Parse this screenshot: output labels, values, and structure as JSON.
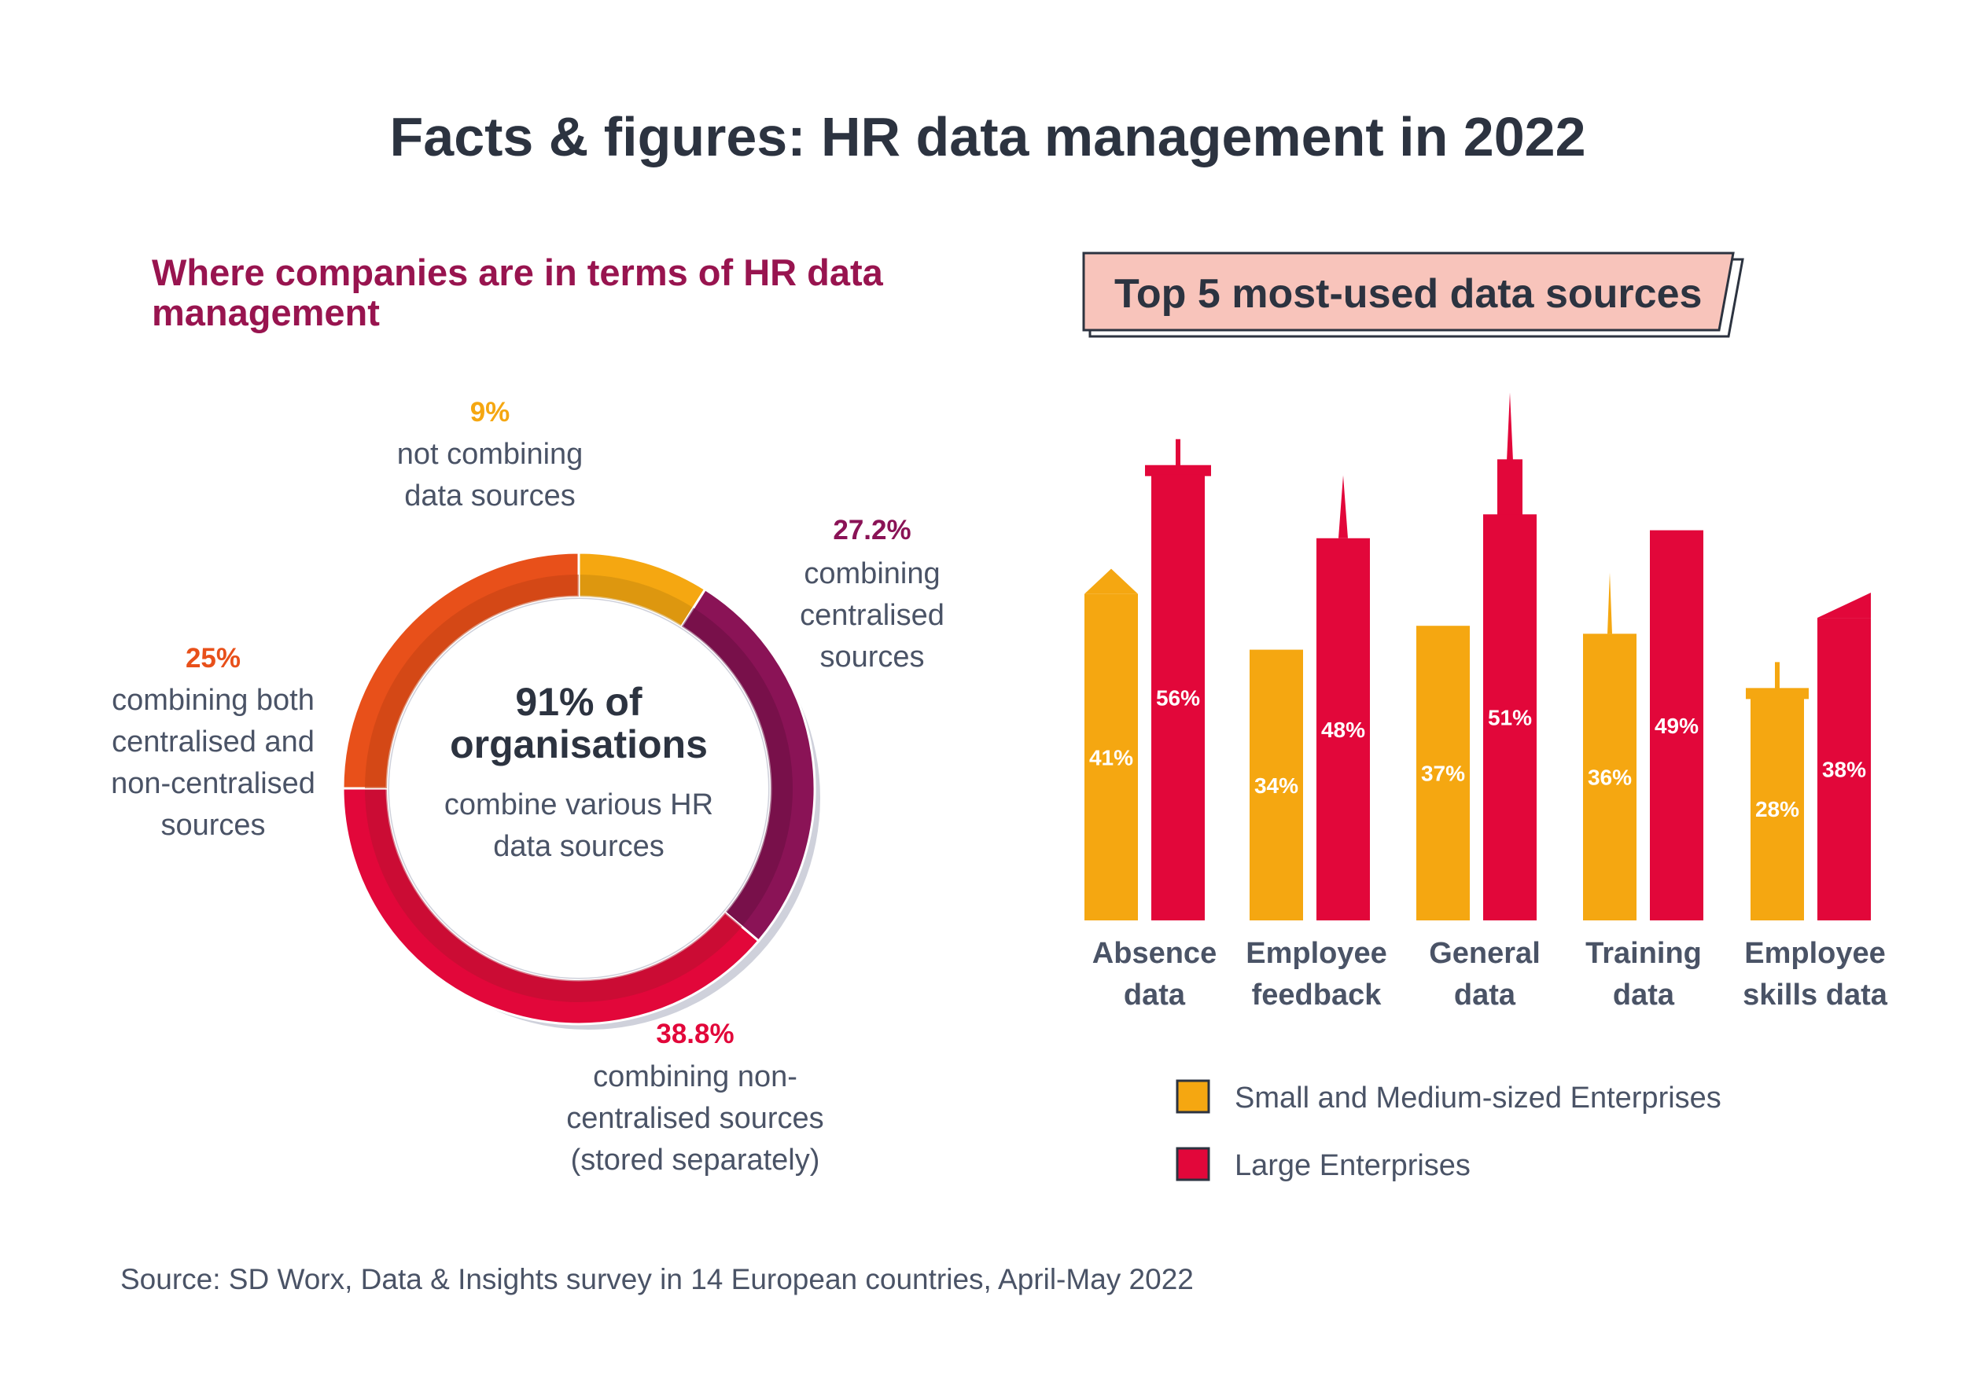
{
  "header": {
    "title": "Facts & figures: HR data management in 2022"
  },
  "left_panel": {
    "title_line1": "Where companies are in terms of HR data",
    "title_line2": "management",
    "center": {
      "line1": "91% of",
      "line2": "organisations",
      "line3": "combine various HR",
      "line4": "data sources"
    },
    "segments": [
      {
        "pct": "9%",
        "lines": [
          "not combining",
          "data sources"
        ]
      },
      {
        "pct": "27.2%",
        "lines": [
          "combining",
          "centralised",
          "sources"
        ]
      },
      {
        "pct": "38.8%",
        "lines": [
          "combining non-",
          "centralised sources",
          "(stored separately)"
        ]
      },
      {
        "pct": "25%",
        "lines": [
          "combining both",
          "centralised and",
          "non-centralised",
          "sources"
        ]
      }
    ]
  },
  "right_panel": {
    "title": "Top 5 most-used data sources",
    "categories": [
      {
        "line1": "Absence",
        "line2": "data"
      },
      {
        "line1": "Employee",
        "line2": "feedback"
      },
      {
        "line1": "General",
        "line2": "data"
      },
      {
        "line1": "Training",
        "line2": "data"
      },
      {
        "line1": "Employee",
        "line2": "skills data"
      }
    ],
    "legend": [
      {
        "label": "Small and Medium-sized Enterprises",
        "color": "#f5a711"
      },
      {
        "label": "Large Enterprises",
        "color": "#e2073a"
      }
    ]
  },
  "footer": {
    "source": "Source: SD Worx, Data & Insights survey in 14 European countries, April-May 2022"
  },
  "colors": {
    "sme": "#f5a711",
    "large": "#e2073a",
    "purple": "#8a1356",
    "red": "#e2073a",
    "orange": "#e8501a",
    "yellow": "#f5a711",
    "title": "#2c3340",
    "banner": "#f8c4bb"
  },
  "chart_data": [
    {
      "type": "pie",
      "categories": [
        "not combining data sources",
        "combining centralised sources",
        "combining non-centralised sources (stored separately)",
        "combining both centralised and non-centralised sources"
      ],
      "values": [
        9,
        27.2,
        38.8,
        25
      ],
      "title": "Where companies are in terms of HR data management"
    },
    {
      "type": "bar",
      "title": "Top 5 most-used data sources",
      "categories": [
        "Absence data",
        "Employee feedback",
        "General data",
        "Training data",
        "Employee skills data"
      ],
      "series": [
        {
          "name": "Small and Medium-sized Enterprises",
          "values": [
            41,
            34,
            37,
            36,
            28
          ]
        },
        {
          "name": "Large Enterprises",
          "values": [
            56,
            48,
            51,
            49,
            38
          ]
        }
      ],
      "ylim": [
        0,
        60
      ]
    }
  ]
}
